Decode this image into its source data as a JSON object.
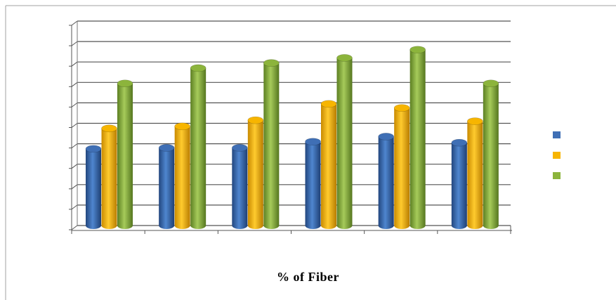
{
  "chart_data": {
    "type": "bar",
    "categories": [
      "",
      "",
      "",
      "",
      "",
      ""
    ],
    "series": [
      {
        "color": "#3f6fb5",
        "values": [
          3.75,
          3.8,
          3.8,
          4.1,
          4.35,
          4.05
        ]
      },
      {
        "color": "#f7b500",
        "values": [
          4.75,
          4.85,
          5.15,
          5.95,
          5.75,
          5.1
        ]
      },
      {
        "color": "#8cb43c",
        "values": [
          6.95,
          7.7,
          7.95,
          8.2,
          8.6,
          6.95
        ]
      }
    ],
    "xlabel": "% of Fiber",
    "ylabel": "",
    "ylim": [
      0,
      10
    ],
    "grid": true,
    "legend": "right",
    "style": "3d-cylinder"
  }
}
